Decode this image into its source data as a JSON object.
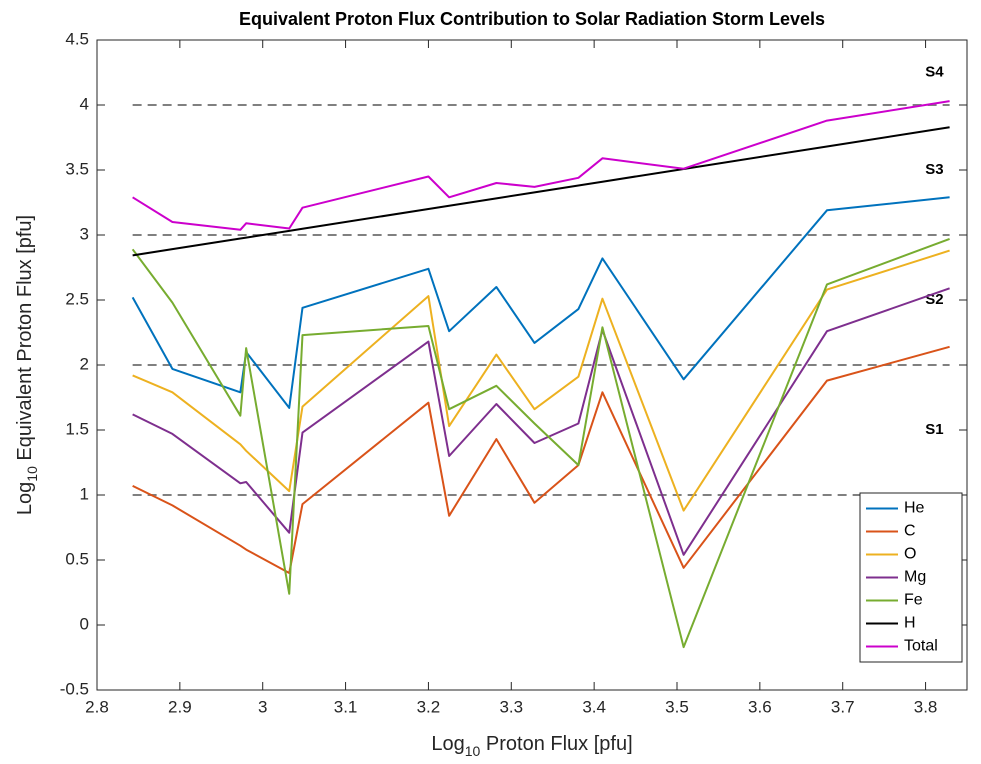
{
  "chart_data": {
    "type": "line",
    "title": "Equivalent Proton Flux Contribution to Solar Radiation Storm Levels",
    "xlabel": [
      "Log",
      "10",
      " Proton Flux [pfu]"
    ],
    "ylabel": [
      "Log",
      "10",
      " Equivalent Proton Flux [pfu]"
    ],
    "x": [
      2.843,
      2.891,
      2.973,
      2.98,
      3.032,
      3.048,
      3.2,
      3.225,
      3.282,
      3.328,
      3.381,
      3.41,
      3.508,
      3.681,
      3.829
    ],
    "series": [
      {
        "name": "He",
        "color": "#0072bd",
        "values": [
          2.52,
          1.97,
          1.79,
          2.1,
          1.67,
          2.44,
          2.74,
          2.26,
          2.6,
          2.17,
          2.43,
          2.82,
          1.89,
          3.19,
          3.29
        ]
      },
      {
        "name": "C",
        "color": "#d95319",
        "values": [
          1.07,
          0.92,
          0.61,
          0.58,
          0.4,
          0.93,
          1.71,
          0.84,
          1.43,
          0.94,
          1.23,
          1.79,
          0.44,
          1.88,
          2.14
        ]
      },
      {
        "name": "O",
        "color": "#edb120",
        "values": [
          1.92,
          1.79,
          1.39,
          1.34,
          1.03,
          1.68,
          2.53,
          1.53,
          2.08,
          1.66,
          1.91,
          2.51,
          0.88,
          2.58,
          2.88
        ]
      },
      {
        "name": "Mg",
        "color": "#7e2f8e",
        "values": [
          1.62,
          1.47,
          1.09,
          1.1,
          0.71,
          1.48,
          2.18,
          1.3,
          1.7,
          1.4,
          1.55,
          2.27,
          0.54,
          2.26,
          2.59
        ]
      },
      {
        "name": "Fe",
        "color": "#77ac30",
        "values": [
          2.89,
          2.48,
          1.61,
          2.13,
          0.24,
          2.23,
          2.3,
          1.66,
          1.84,
          1.55,
          1.23,
          2.29,
          -0.17,
          2.62,
          2.97
        ]
      },
      {
        "name": "H",
        "color": "#000000",
        "values": [
          2.843,
          2.891,
          2.973,
          2.98,
          3.032,
          3.048,
          3.2,
          3.225,
          3.282,
          3.328,
          3.381,
          3.41,
          3.508,
          3.681,
          3.829
        ]
      },
      {
        "name": "Total",
        "color": "#cc00cc",
        "values": [
          3.29,
          3.1,
          3.04,
          3.09,
          3.05,
          3.21,
          3.45,
          3.29,
          3.4,
          3.37,
          3.44,
          3.59,
          3.51,
          3.88,
          4.03
        ]
      }
    ],
    "storm_levels": [
      {
        "label": "S1",
        "value": 1
      },
      {
        "label": "S2",
        "value": 2
      },
      {
        "label": "S3",
        "value": 3
      },
      {
        "label": "S4",
        "value": 4
      }
    ],
    "xlim": [
      2.8,
      3.85
    ],
    "ylim": [
      -0.5,
      4.5
    ],
    "xticks": [
      2.8,
      2.9,
      3,
      3.1,
      3.2,
      3.3,
      3.4,
      3.5,
      3.6,
      3.7,
      3.8
    ],
    "yticks": [
      -0.5,
      0,
      0.5,
      1,
      1.5,
      2,
      2.5,
      3,
      3.5,
      4,
      4.5
    ],
    "legend": "southeast",
    "grid": false
  }
}
